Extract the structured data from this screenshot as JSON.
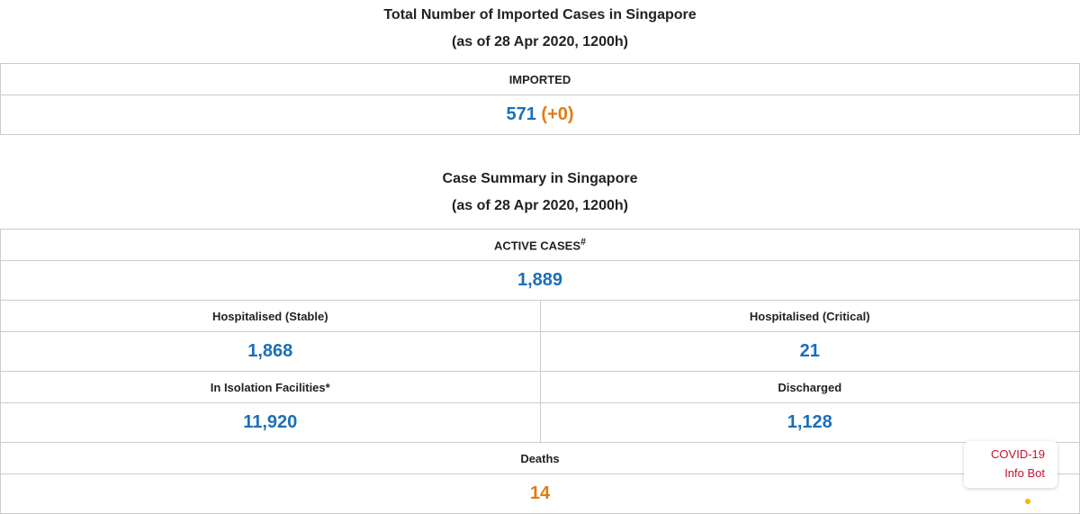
{
  "imported": {
    "title": "Total Number of Imported Cases in Singapore",
    "subtitle": "(as of 28 Apr 2020, 1200h)",
    "header": "IMPORTED",
    "value": "571",
    "change": "(+0)"
  },
  "summary": {
    "title": "Case Summary in Singapore",
    "subtitle": "(as of 28 Apr 2020, 1200h)",
    "active": {
      "label": "ACTIVE CASES",
      "mark": "#",
      "value": "1,889"
    },
    "stable": {
      "label": "Hospitalised (Stable)",
      "value": "1,868"
    },
    "critical": {
      "label": "Hospitalised (Critical)",
      "value": "21"
    },
    "isolation": {
      "label": "In Isolation Facilities*",
      "value": "11,920"
    },
    "discharged": {
      "label": "Discharged",
      "value": "1,128"
    },
    "deaths": {
      "label": "Deaths",
      "value": "14"
    }
  },
  "bot": {
    "line1": "COVID-19",
    "line2": "Info Bot"
  },
  "colors": {
    "number": "#1a6fb8",
    "change": "#e07b14",
    "bot": "#c8102e"
  }
}
